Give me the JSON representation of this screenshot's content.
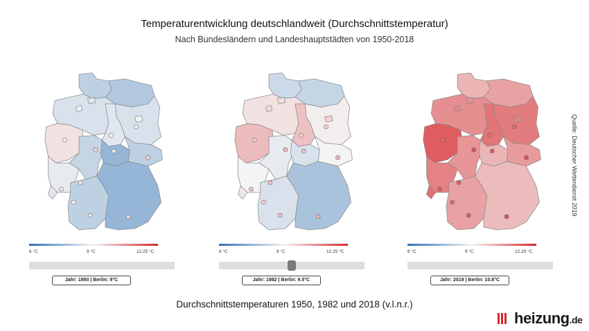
{
  "title": "Temperaturentwicklung deutschlandweit (Durchschnittstemperatur)",
  "subtitle": "Nach Bundesländern und Landeshauptstädten von 1950-2018",
  "caption": "Durchschnittstemperaturen 1950, 1982 und 2018 (v.l.n.r.)",
  "source": "Quelle: Deutscher Wetterdienst 2019",
  "logo": {
    "name": "heizung",
    "tld": ".de",
    "accent": "#d7262b"
  },
  "legend": {
    "min_label": "6 °C",
    "mid_label": "9 °C",
    "max_label": "12.25 °C",
    "min_color": "#2b6fb6",
    "mid_color": "#f4f4f4",
    "max_color": "#d7262b"
  },
  "maps": [
    {
      "year": 1950,
      "tooltip": "Jahr: 1950 | Berlin: 9°C",
      "slider_fraction": 0.0,
      "regions": {
        "SH": 8.2,
        "HH": 8.7,
        "MV": 8.0,
        "HB": 8.9,
        "NI": 8.6,
        "BE": 9.0,
        "BB": 8.6,
        "ST": 8.7,
        "NW": 9.3,
        "HE": 8.3,
        "TH": 7.6,
        "SN": 8.2,
        "RP": 8.8,
        "SL": 8.7,
        "BW": 8.2,
        "BY": 7.6
      }
    },
    {
      "year": 1982,
      "tooltip": "Jahr: 1982 | Berlin: 9.5°C",
      "slider_fraction": 0.5,
      "regions": {
        "SH": 8.4,
        "HH": 9.3,
        "MV": 8.3,
        "HB": 9.4,
        "NI": 9.3,
        "BE": 9.5,
        "BB": 9.1,
        "ST": 9.8,
        "NW": 9.9,
        "HE": 8.8,
        "TH": 8.6,
        "SN": 9.0,
        "RP": 9.0,
        "SL": 9.2,
        "BW": 8.6,
        "BY": 7.9
      }
    },
    {
      "year": 2018,
      "tooltip": "Jahr: 2018 | Berlin: 10.8°C",
      "slider_fraction": 1.0,
      "regions": {
        "SH": 10.0,
        "HH": 10.6,
        "MV": 10.3,
        "HB": 10.7,
        "NI": 10.6,
        "BE": 10.8,
        "BB": 10.9,
        "ST": 11.0,
        "NW": 11.4,
        "HE": 10.5,
        "TH": 10.0,
        "SN": 10.4,
        "RP": 10.8,
        "SL": 11.1,
        "BW": 10.3,
        "BY": 9.9
      }
    }
  ]
}
